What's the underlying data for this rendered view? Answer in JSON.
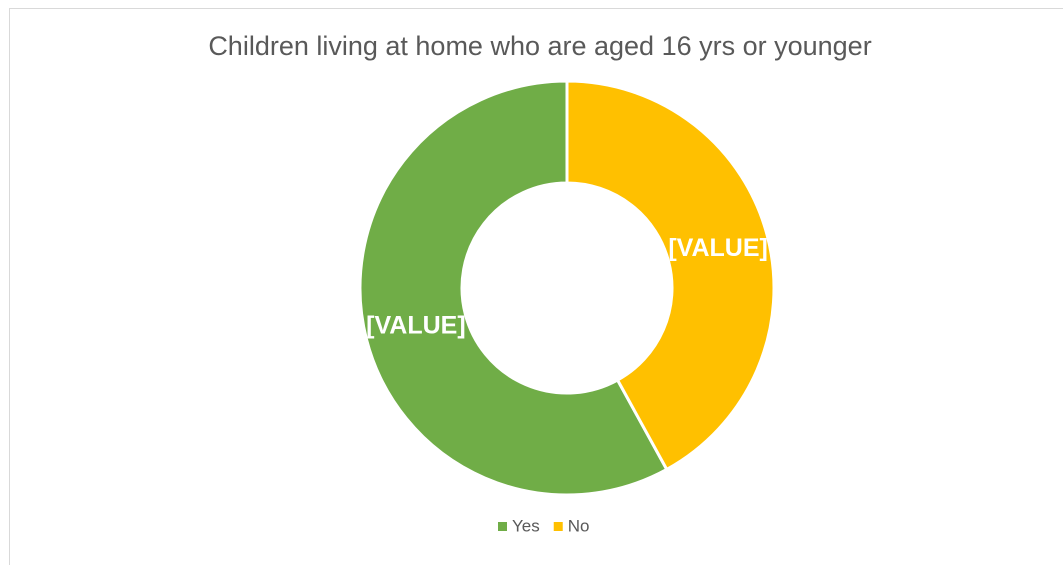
{
  "chart_data": {
    "type": "donut",
    "title": "Children living at home who are aged 16 yrs or younger",
    "categories": [
      "Yes",
      "No"
    ],
    "values": [
      58,
      42
    ],
    "value_labels": [
      "[VALUE]",
      "[VALUE]"
    ],
    "colors": [
      "#70ad47",
      "#ffc000"
    ],
    "legend": "bottom"
  }
}
